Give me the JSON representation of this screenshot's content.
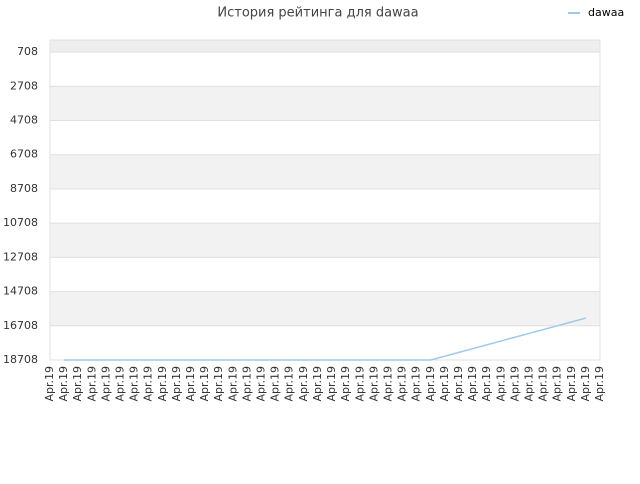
{
  "chart_data": {
    "type": "line",
    "title": "История рейтинга для dawaa",
    "categories": [
      "Apr.19",
      "Apr.19",
      "Apr.19",
      "Apr.19",
      "Apr.19",
      "Apr.19",
      "Apr.19",
      "Apr.19",
      "Apr.19",
      "Apr.19",
      "Apr.19",
      "Apr.19",
      "Apr.19",
      "Apr.19",
      "Apr.19",
      "Apr.19",
      "Apr.19",
      "Apr.19",
      "Apr.19",
      "Apr.19",
      "Apr.19",
      "Apr.19",
      "Apr.19",
      "Apr.19",
      "Apr.19",
      "Apr.19",
      "Apr.19",
      "Apr.19",
      "Apr.19",
      "Apr.19",
      "Apr.19",
      "Apr.19",
      "Apr.19",
      "Apr.19",
      "Apr.19",
      "Apr.19",
      "Apr.19",
      "Apr.19",
      "Apr.19",
      "Apr.19"
    ],
    "series": [
      {
        "name": "dawaa",
        "color": "#9ecae9",
        "values": [
          null,
          18708,
          18708,
          18708,
          18708,
          18708,
          18708,
          18708,
          18708,
          18708,
          18708,
          18708,
          18708,
          18708,
          18708,
          18708,
          18708,
          18708,
          18708,
          18708,
          18708,
          18708,
          18708,
          18708,
          18708,
          18708,
          18708,
          18708,
          18485,
          18262,
          18039,
          17816,
          17593,
          17370,
          17147,
          16924,
          16701,
          16478,
          16255,
          null
        ]
      }
    ],
    "ylim": [
      18708,
      0
    ],
    "yticks": [
      708,
      2708,
      4708,
      6708,
      8708,
      10708,
      12708,
      14708,
      16708,
      18708
    ],
    "inverted_y": true,
    "banded_grid": true,
    "legend": "top-right"
  }
}
